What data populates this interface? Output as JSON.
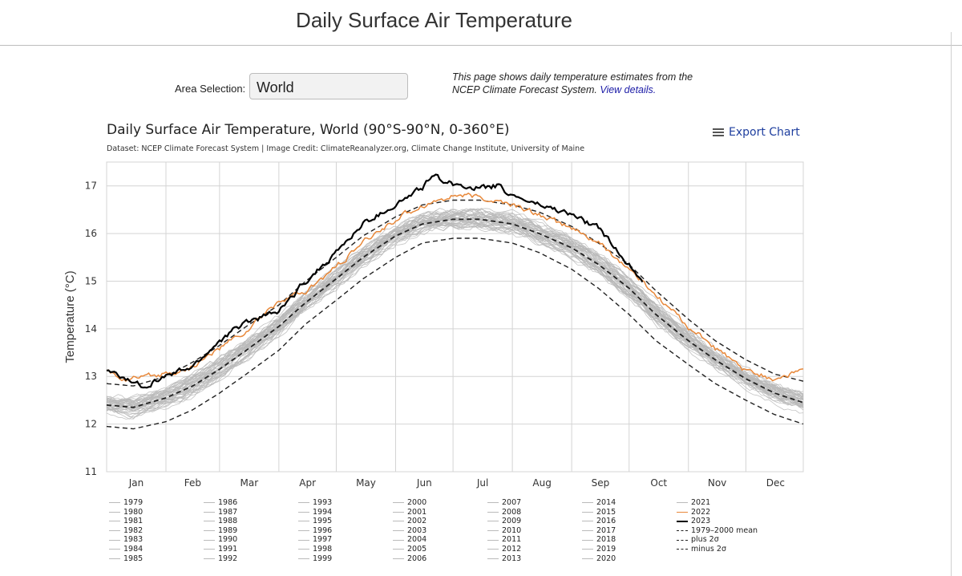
{
  "page": {
    "title": "Daily Surface Air Temperature",
    "area_label": "Area Selection:",
    "area_value": "World",
    "info_text": "This page shows daily temperature estimates from the NCEP Climate Forecast System.",
    "info_link": "View details."
  },
  "export_label": "Export Chart",
  "colors": {
    "past_years": "#b8b8b8",
    "year_2022": "#e8883a",
    "year_2023": "#000000",
    "mean": "#222222",
    "grid": "#d4d4d4"
  },
  "chart_data": {
    "type": "line",
    "title": "Daily Surface Air Temperature, World (90°S-90°N, 0-360°E)",
    "subtitle": "Dataset: NCEP Climate Forecast System | Image Credit: ClimateReanalyzer.org, Climate Change Institute, University of Maine",
    "ylabel": "Temperature (°C)",
    "xlabel": "",
    "ylim": [
      11,
      17.5
    ],
    "yticks": [
      11,
      12,
      13,
      14,
      15,
      16,
      17
    ],
    "xlim": [
      1,
      365
    ],
    "months": [
      "Jan",
      "Feb",
      "Mar",
      "Apr",
      "May",
      "Jun",
      "Jul",
      "Aug",
      "Sep",
      "Oct",
      "Nov",
      "Dec"
    ],
    "grid": true,
    "legend_position": "bottom",
    "legend_entries": [
      "1979",
      "1980",
      "1981",
      "1982",
      "1983",
      "1984",
      "1985",
      "1986",
      "1987",
      "1988",
      "1989",
      "1990",
      "1991",
      "1992",
      "1993",
      "1994",
      "1995",
      "1996",
      "1997",
      "1998",
      "1999",
      "2000",
      "2001",
      "2002",
      "2003",
      "2004",
      "2005",
      "2006",
      "2007",
      "2008",
      "2009",
      "2010",
      "2011",
      "2012",
      "2013",
      "2014",
      "2015",
      "2016",
      "2017",
      "2018",
      "2019",
      "2020",
      "2021",
      "2022",
      "2023",
      "1979-2000 mean",
      "plus 2σ",
      "minus 2σ"
    ],
    "series": [
      {
        "name": "1979-2000 mean",
        "style": "dashed",
        "x": [
          1,
          15,
          32,
          46,
          60,
          74,
          91,
          105,
          121,
          135,
          152,
          166,
          182,
          196,
          213,
          227,
          244,
          258,
          274,
          288,
          305,
          319,
          335,
          350,
          365
        ],
        "y": [
          12.4,
          12.35,
          12.55,
          12.8,
          13.15,
          13.55,
          14.05,
          14.55,
          15.05,
          15.5,
          15.95,
          16.2,
          16.3,
          16.3,
          16.2,
          16.0,
          15.7,
          15.35,
          14.85,
          14.3,
          13.75,
          13.35,
          12.95,
          12.65,
          12.45
        ]
      },
      {
        "name": "plus 2σ",
        "style": "dashed",
        "x": [
          1,
          15,
          32,
          46,
          60,
          74,
          91,
          105,
          121,
          135,
          152,
          166,
          182,
          196,
          213,
          227,
          244,
          258,
          274,
          288,
          305,
          319,
          335,
          350,
          365
        ],
        "y": [
          12.85,
          12.8,
          13.0,
          13.3,
          13.65,
          14.05,
          14.5,
          15.0,
          15.5,
          15.95,
          16.35,
          16.6,
          16.7,
          16.7,
          16.6,
          16.45,
          16.15,
          15.8,
          15.35,
          14.8,
          14.2,
          13.75,
          13.35,
          13.05,
          12.9
        ]
      },
      {
        "name": "minus 2σ",
        "style": "dashed",
        "x": [
          1,
          15,
          32,
          46,
          60,
          74,
          91,
          105,
          121,
          135,
          152,
          166,
          182,
          196,
          213,
          227,
          244,
          258,
          274,
          288,
          305,
          319,
          335,
          350,
          365
        ],
        "y": [
          11.95,
          11.9,
          12.05,
          12.3,
          12.65,
          13.05,
          13.55,
          14.1,
          14.6,
          15.05,
          15.5,
          15.8,
          15.9,
          15.9,
          15.8,
          15.6,
          15.25,
          14.85,
          14.3,
          13.75,
          13.25,
          12.85,
          12.5,
          12.2,
          12.0
        ]
      },
      {
        "name": "2022",
        "style": "solid",
        "x": [
          1,
          10,
          20,
          32,
          46,
          60,
          74,
          91,
          105,
          121,
          135,
          152,
          166,
          182,
          196,
          213,
          227,
          244,
          258,
          274,
          288,
          305,
          319,
          335,
          350,
          365
        ],
        "y": [
          13.1,
          12.95,
          12.95,
          13.05,
          13.2,
          13.6,
          13.95,
          14.6,
          14.75,
          15.3,
          15.8,
          16.3,
          16.6,
          16.8,
          16.75,
          16.6,
          16.4,
          16.1,
          15.8,
          15.25,
          14.7,
          14.05,
          13.6,
          13.1,
          12.95,
          13.15
        ]
      },
      {
        "name": "2023",
        "style": "solid",
        "x": [
          1,
          10,
          20,
          32,
          46,
          60,
          74,
          91,
          105,
          121,
          135,
          152,
          166,
          171,
          182,
          196,
          205,
          213,
          227,
          244,
          258,
          274,
          281
        ],
        "y": [
          13.1,
          12.95,
          12.8,
          13.0,
          13.2,
          13.75,
          14.15,
          14.35,
          15.0,
          15.6,
          16.2,
          16.6,
          16.95,
          17.2,
          17.05,
          16.95,
          17.0,
          16.8,
          16.6,
          16.4,
          16.1,
          15.35,
          15.05
        ]
      }
    ]
  },
  "legend_misc": {
    "mean_label": "1979–2000 mean",
    "plus_label": "plus 2σ",
    "minus_label": "minus 2σ"
  }
}
